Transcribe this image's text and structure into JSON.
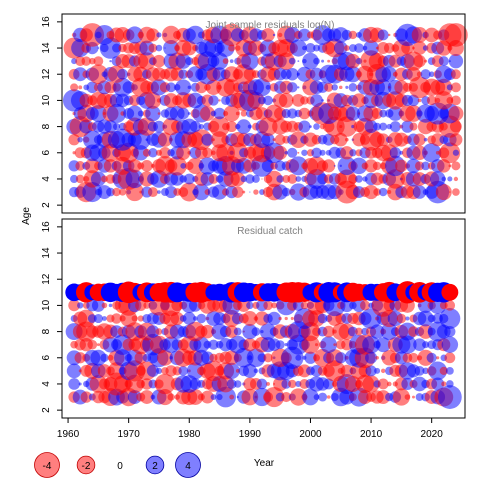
{
  "chart_data": {
    "type": "scatter",
    "xlabel": "Year",
    "ylabel": "Age",
    "xlim": [
      1959,
      2025.5
    ],
    "x_ticks": [
      1960,
      1970,
      1980,
      1990,
      2000,
      2010,
      2020
    ],
    "y_ticks": [
      2,
      4,
      6,
      8,
      10,
      12,
      14,
      16
    ],
    "x_tick_labels": [
      "1960",
      "1970",
      "1980",
      "1990",
      "2000",
      "2010",
      "2020"
    ],
    "y_tick_labels": [
      "2",
      "4",
      "6",
      "8",
      "10",
      "12",
      "14",
      "16"
    ],
    "colors": {
      "negative": "#ff0000",
      "positive": "#0000ff"
    },
    "legend": {
      "placement": "bottom-left",
      "values": [
        -4,
        -2,
        0,
        2,
        4
      ],
      "labels": [
        "-4",
        "-2",
        "0",
        "2",
        "4"
      ]
    },
    "panels": [
      {
        "title": "Joint sample residuals log(N)",
        "ylim": [
          1.4,
          16.6
        ],
        "years": [
          1961,
          2024
        ],
        "ages": [
          3,
          15
        ],
        "opacity": 0.5,
        "seed": 7,
        "highlights": [
          {
            "year": 2024,
            "age": 15,
            "value": -3.6
          },
          {
            "year": 1987,
            "age": 15,
            "value": -3.3
          },
          {
            "year": 1960,
            "age": 13,
            "value": -2.8
          },
          {
            "year": 1961,
            "age": 10,
            "value": 3.2
          },
          {
            "year": 1978,
            "age": 5,
            "value": -2.4
          },
          {
            "year": 2018,
            "age": 11,
            "value": -3.0
          },
          {
            "year": 2021,
            "age": 3,
            "value": 3.3
          }
        ]
      },
      {
        "title": "Residual catch",
        "ylim": [
          1.4,
          16.6
        ],
        "years": [
          1961,
          2023
        ],
        "ages": [
          3,
          11
        ],
        "opacity": 0.5,
        "seed": 23,
        "age11_solid": true,
        "highlights": [
          {
            "year": 1970,
            "age": 11,
            "value": -3.0
          },
          {
            "year": 2016,
            "age": 11,
            "value": -3.2
          },
          {
            "year": 2013,
            "age": 11,
            "value": -2.8
          },
          {
            "year": 1963,
            "age": 8,
            "value": -2.6
          },
          {
            "year": 2023,
            "age": 9,
            "value": 2.8
          },
          {
            "year": 1994,
            "age": 3,
            "value": -2.6
          },
          {
            "year": 1996,
            "age": 10,
            "value": 2.5
          }
        ]
      }
    ]
  }
}
